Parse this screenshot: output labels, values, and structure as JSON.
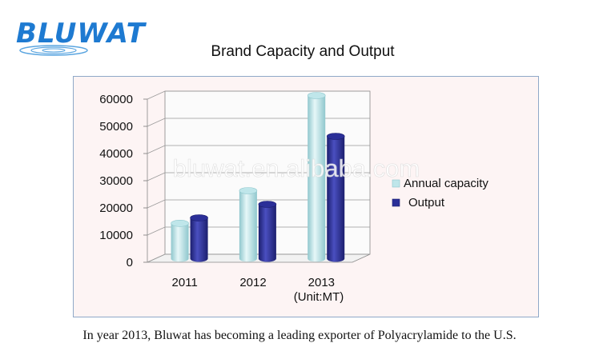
{
  "logo": {
    "text": "BLUWAT",
    "color": "#1e7ad1"
  },
  "watermark": "bluwat.en.alibaba.com",
  "caption": "In year 2013, Bluwat has becoming a leading exporter of Polyacrylamide to the U.S.",
  "colors": {
    "capacity": "#bfe6ea",
    "output": "#2b2f98",
    "frame": "#8fa8c8"
  },
  "chart_data": {
    "type": "bar",
    "title": "Brand Capacity and Output",
    "categories": [
      "2011",
      "2012",
      "2013"
    ],
    "unit_note": "(Unit:MT)",
    "series": [
      {
        "name": "Annual capacity",
        "values": [
          13000,
          25000,
          60000
        ]
      },
      {
        "name": "Output",
        "values": [
          15000,
          20000,
          45000
        ]
      }
    ],
    "ylim": [
      0,
      60000
    ],
    "yticks": [
      "0",
      "10000",
      "20000",
      "30000",
      "40000",
      "50000",
      "60000"
    ],
    "grid": true,
    "legend": "right"
  }
}
